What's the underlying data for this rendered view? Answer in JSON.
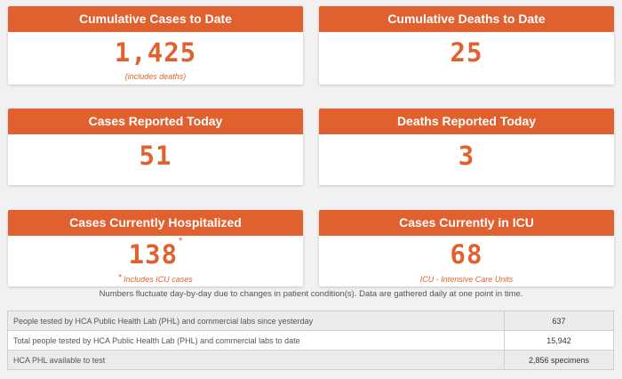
{
  "cards": [
    {
      "title": "Cumulative Cases to Date",
      "value": "1,425",
      "note": "(includes deaths)"
    },
    {
      "title": "Cumulative Deaths to Date",
      "value": "25"
    },
    {
      "title": "Cases Reported Today",
      "value": "51"
    },
    {
      "title": "Deaths Reported Today",
      "value": "3"
    },
    {
      "title": "Cases Currently Hospitalized",
      "value": "138",
      "value_mark": "*",
      "note_mark": "*",
      "note": "Includes ICU cases"
    },
    {
      "title": "Cases Currently in ICU",
      "value": "68",
      "note": "ICU - Intensive Care Units"
    }
  ],
  "footnote": "Numbers fluctuate day-by-day due to changes in patient condition(s). Data are gathered daily at one point in time.",
  "stats": [
    {
      "label": "People tested by HCA Public Health Lab (PHL) and commercial labs since yesterday",
      "value": "637"
    },
    {
      "label": "Total people tested by HCA Public Health Lab (PHL) and commercial labs to date",
      "value": "15,942"
    },
    {
      "label": "HCA PHL available to test",
      "value": "2,856 specimens"
    }
  ],
  "colors": {
    "accent": "#e0612f"
  }
}
